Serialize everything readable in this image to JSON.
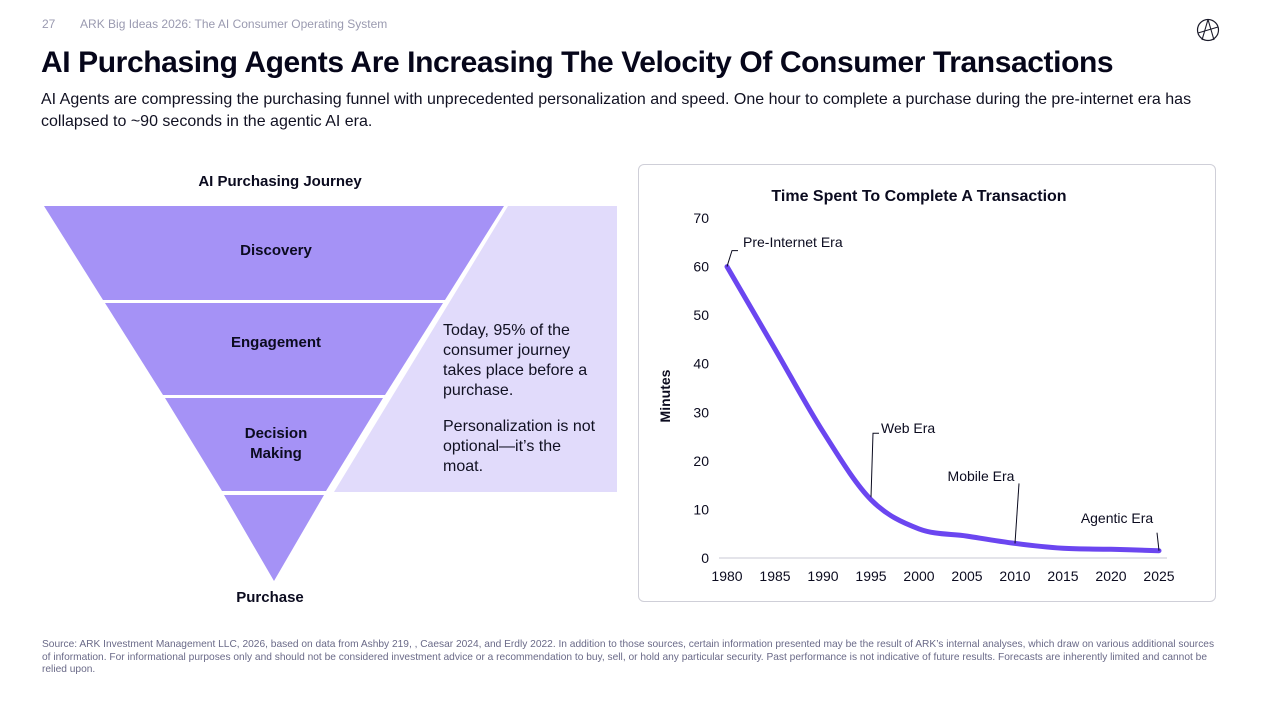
{
  "header": {
    "page_number": "27",
    "report_title": "ARK Big Ideas 2026: The AI Consumer Operating System"
  },
  "title": "AI Purchasing Agents Are Increasing The Velocity Of Consumer Transactions",
  "subtitle": "AI Agents are compressing the purchasing funnel with unprecedented personalization and speed. One hour to complete a purchase during the pre-internet era has collapsed to ~90 seconds in the agentic AI era.",
  "funnel": {
    "title": "AI Purchasing Journey",
    "stages": [
      "Discovery",
      "Engagement",
      "Decision\nMaking"
    ],
    "bottom_label": "Purchase",
    "callout_1": "Today, 95% of the consumer journey takes place before a purchase.",
    "callout_2": "Personalization is not optional—it’s the moat.",
    "colors": {
      "band": "#a592f6",
      "callout_bg": "#e1dbfb"
    }
  },
  "chart_data": {
    "type": "line",
    "title": "Time Spent To Complete A Transaction",
    "xlabel": "",
    "ylabel": "Minutes",
    "xlim": [
      1980,
      2025
    ],
    "ylim": [
      0,
      70
    ],
    "x_ticks": [
      1980,
      1985,
      1990,
      1995,
      2000,
      2005,
      2010,
      2015,
      2020,
      2025
    ],
    "y_ticks": [
      0,
      10,
      20,
      30,
      40,
      50,
      60,
      70
    ],
    "series": [
      {
        "name": "Minutes",
        "color": "#6b46f0",
        "x": [
          1980,
          1985,
          1990,
          1995,
          2000,
          2005,
          2010,
          2015,
          2020,
          2025
        ],
        "y": [
          60,
          43,
          26,
          12,
          6,
          4.5,
          3,
          2,
          1.8,
          1.5
        ]
      }
    ],
    "annotations": [
      {
        "label": "Pre-Internet Era",
        "x": 1980,
        "y": 60
      },
      {
        "label": "Web Era",
        "x": 1995,
        "y": 12.5
      },
      {
        "label": "Mobile Era",
        "x": 2010,
        "y": 3
      },
      {
        "label": "Agentic Era",
        "x": 2025,
        "y": 1.5
      }
    ]
  },
  "source": "Source: ARK Investment Management LLC, 2026, based on data from Ashby 219, , Caesar 2024, and Erdly 2022. In addition to those sources, certain information presented may be the result of ARK’s internal analyses, which draw on various additional sources of information. For informational purposes only and should not be considered investment advice or a recommendation to buy, sell, or hold any particular security. Past performance is not indicative of future results. Forecasts are inherently limited and cannot be relied upon."
}
